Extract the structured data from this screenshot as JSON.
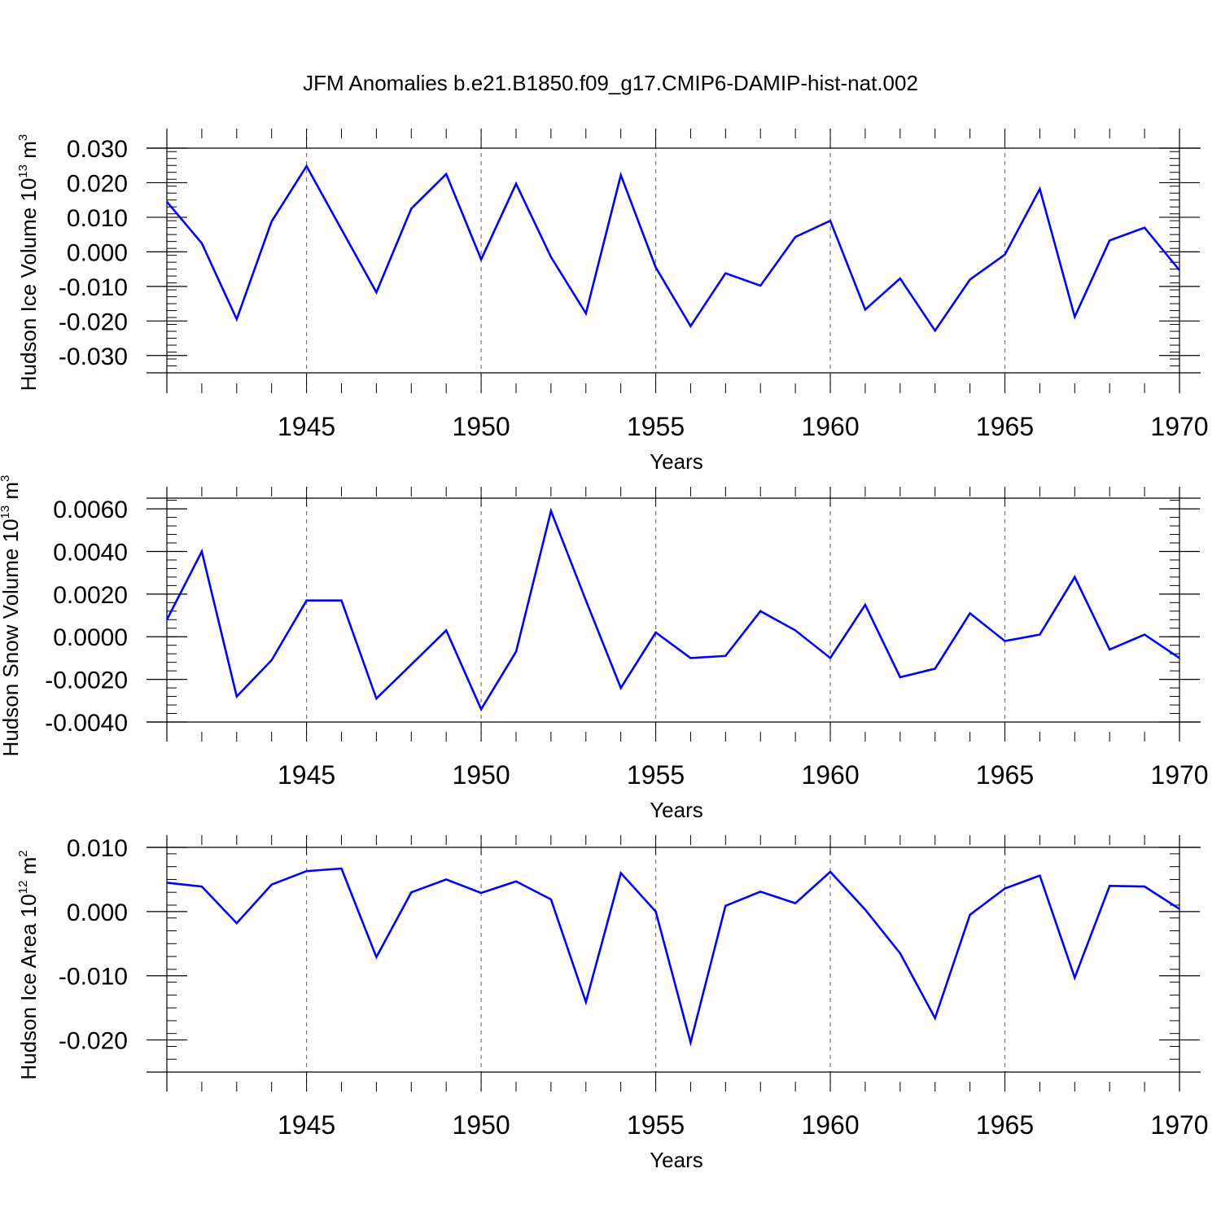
{
  "title": "JFM Anomalies b.e21.B1850.f09_g17.CMIP6-DAMIP-hist-nat.002",
  "line_color": "#0000ff",
  "chart_data": [
    {
      "type": "line",
      "ylabel_parts": [
        "Hudson Ice Volume 10",
        "13",
        " m",
        "3"
      ],
      "xlabel": "Years",
      "xlim": [
        1941,
        1970
      ],
      "ylim": [
        -0.035,
        0.03
      ],
      "yticks": [
        0.03,
        0.02,
        0.01,
        0.0,
        -0.01,
        -0.02,
        -0.03
      ],
      "ytick_labels": [
        "0.030",
        "0.020",
        "0.010",
        "0.000",
        "-0.010",
        "-0.020",
        "-0.030"
      ],
      "xticks": [
        1945,
        1950,
        1955,
        1960,
        1965,
        1970
      ],
      "xtick_labels": [
        "1945",
        "1950",
        "1955",
        "1960",
        "1965",
        "1970"
      ],
      "grid": "vertical dashed at major x ticks",
      "x": [
        1941,
        1942,
        1943,
        1944,
        1945,
        1946,
        1947,
        1948,
        1949,
        1950,
        1951,
        1952,
        1953,
        1954,
        1955,
        1956,
        1957,
        1958,
        1959,
        1960,
        1961,
        1962,
        1963,
        1964,
        1965,
        1966,
        1967,
        1968,
        1969,
        1970
      ],
      "values": [
        0.0145,
        0.0025,
        -0.0195,
        0.0088,
        0.0248,
        0.0065,
        -0.0117,
        0.0125,
        0.0225,
        -0.0022,
        0.0197,
        -0.0015,
        -0.0178,
        0.0222,
        -0.0045,
        -0.0215,
        -0.0062,
        -0.0098,
        0.0043,
        0.009,
        -0.0167,
        -0.0077,
        -0.0228,
        -0.008,
        -0.0008,
        0.0182,
        -0.0188,
        0.0033,
        0.007,
        -0.0053
      ]
    },
    {
      "type": "line",
      "ylabel_parts": [
        "Hudson Snow Volume 10",
        "13",
        " m",
        "3"
      ],
      "xlabel": "Years",
      "xlim": [
        1941,
        1970
      ],
      "ylim": [
        -0.004,
        0.0065
      ],
      "yticks": [
        0.006,
        0.004,
        0.002,
        0.0,
        -0.002,
        -0.004
      ],
      "ytick_labels": [
        "0.0060",
        "0.0040",
        "0.0020",
        "0.0000",
        "-0.0020",
        "-0.0040"
      ],
      "xticks": [
        1945,
        1950,
        1955,
        1960,
        1965,
        1970
      ],
      "xtick_labels": [
        "1945",
        "1950",
        "1955",
        "1960",
        "1965",
        "1970"
      ],
      "grid": "vertical dashed at major x ticks",
      "x": [
        1941,
        1942,
        1943,
        1944,
        1945,
        1946,
        1947,
        1948,
        1949,
        1950,
        1951,
        1952,
        1953,
        1954,
        1955,
        1956,
        1957,
        1958,
        1959,
        1960,
        1961,
        1962,
        1963,
        1964,
        1965,
        1966,
        1967,
        1968,
        1969,
        1970
      ],
      "values": [
        0.0008,
        0.004,
        -0.0028,
        -0.0011,
        0.0017,
        0.0017,
        -0.0029,
        -0.0013,
        0.0003,
        -0.0034,
        -0.0007,
        0.0059,
        0.0017,
        -0.0024,
        0.0002,
        -0.001,
        -0.0009,
        0.0012,
        0.0003,
        -0.001,
        0.0015,
        -0.0019,
        -0.0015,
        0.0011,
        -0.0002,
        0.0001,
        0.0028,
        -0.0006,
        0.0001,
        -0.001
      ]
    },
    {
      "type": "line",
      "ylabel_parts": [
        "Hudson Ice Area 10",
        "12",
        " m",
        "2"
      ],
      "xlabel": "Years",
      "xlim": [
        1941,
        1970
      ],
      "ylim": [
        -0.025,
        0.01
      ],
      "yticks": [
        0.01,
        0.0,
        -0.01,
        -0.02
      ],
      "ytick_labels": [
        "0.010",
        "0.000",
        "-0.010",
        "-0.020"
      ],
      "xticks": [
        1945,
        1950,
        1955,
        1960,
        1965,
        1970
      ],
      "xtick_labels": [
        "1945",
        "1950",
        "1955",
        "1960",
        "1965",
        "1970"
      ],
      "grid": "vertical dashed at major x ticks",
      "x": [
        1941,
        1942,
        1943,
        1944,
        1945,
        1946,
        1947,
        1948,
        1949,
        1950,
        1951,
        1952,
        1953,
        1954,
        1955,
        1956,
        1957,
        1958,
        1959,
        1960,
        1961,
        1962,
        1963,
        1964,
        1965,
        1966,
        1967,
        1968,
        1969,
        1970
      ],
      "values": [
        0.0045,
        0.0039,
        -0.0018,
        0.0042,
        0.0063,
        0.0067,
        -0.0071,
        0.003,
        0.005,
        0.0029,
        0.0047,
        0.0019,
        -0.0141,
        0.006,
        0.0,
        -0.0204,
        0.0009,
        0.0031,
        0.0013,
        0.0062,
        0.0003,
        -0.0065,
        -0.0166,
        -0.0005,
        0.0036,
        0.0056,
        -0.0103,
        0.004,
        0.0039,
        0.0004
      ]
    }
  ]
}
